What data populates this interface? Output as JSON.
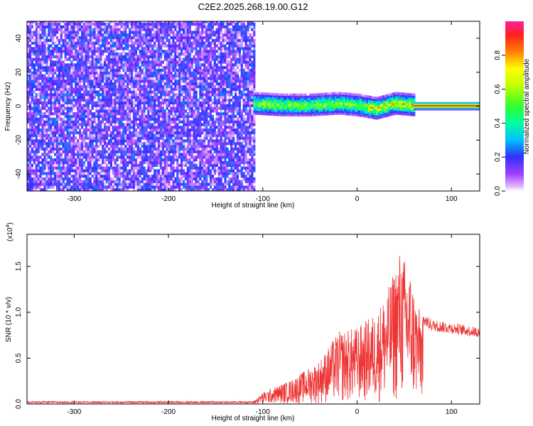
{
  "title": "C2E2.2025.268.19.00.G12",
  "chart_data": [
    {
      "type": "heatmap",
      "name": "spectrogram",
      "xlabel": "Height of straight line (km)",
      "ylabel": "Frequency (Hz)",
      "xlim": [
        -350,
        130
      ],
      "ylim": [
        -50,
        50
      ],
      "xticks": [
        -300,
        -200,
        -100,
        0,
        100
      ],
      "yticks": [
        -40,
        -20,
        0,
        20,
        40
      ],
      "colorbar": {
        "label": "Normalized spectral amplitude",
        "range": [
          0.0,
          1.0
        ],
        "ticks": [
          0.0,
          0.2,
          0.4,
          0.6,
          0.8
        ]
      },
      "regions": [
        {
          "x_range": [
            -350,
            -110
          ],
          "description": "broadband noise across all frequencies",
          "amplitude": 0.15
        },
        {
          "x_range": [
            -110,
            60
          ],
          "description": "signal band near 0 Hz, width about 10 Hz",
          "amplitude": 0.4
        },
        {
          "x_range": [
            60,
            130
          ],
          "description": "narrow line at 0 Hz",
          "amplitude": 0.9
        }
      ],
      "centerline": [
        {
          "x": -110,
          "y": 1
        },
        {
          "x": -80,
          "y": 0
        },
        {
          "x": -50,
          "y": 0
        },
        {
          "x": -20,
          "y": 1
        },
        {
          "x": 0,
          "y": 0
        },
        {
          "x": 20,
          "y": -2
        },
        {
          "x": 40,
          "y": 1
        },
        {
          "x": 60,
          "y": 0
        },
        {
          "x": 130,
          "y": 0
        }
      ]
    },
    {
      "type": "line",
      "name": "snr",
      "xlabel": "Height of straight line (km)",
      "ylabel": "SNR (10 * v/v)",
      "y_multiplier": "(x10",
      "y_multiplier_exp": "4",
      "y_multiplier_close": ")",
      "xlim": [
        -350,
        130
      ],
      "ylim": [
        0,
        1.85
      ],
      "xticks": [
        -300,
        -200,
        -100,
        0,
        100
      ],
      "yticks": [
        0.0,
        0.5,
        1.0,
        1.5
      ],
      "ytick_labels": [
        "0.0",
        "0.5",
        "1.0",
        "1.5"
      ],
      "color": "#ee3333",
      "envelope": [
        {
          "x": -350,
          "y": 0.03
        },
        {
          "x": -110,
          "y": 0.03
        },
        {
          "x": -100,
          "y": 0.12
        },
        {
          "x": -70,
          "y": 0.25
        },
        {
          "x": -40,
          "y": 0.45
        },
        {
          "x": -20,
          "y": 0.75
        },
        {
          "x": 0,
          "y": 0.8
        },
        {
          "x": 20,
          "y": 0.95
        },
        {
          "x": 35,
          "y": 1.25
        },
        {
          "x": 45,
          "y": 1.6
        },
        {
          "x": 55,
          "y": 1.45
        },
        {
          "x": 65,
          "y": 1.0
        },
        {
          "x": 80,
          "y": 0.9
        },
        {
          "x": 100,
          "y": 0.87
        },
        {
          "x": 130,
          "y": 0.82
        }
      ]
    }
  ]
}
